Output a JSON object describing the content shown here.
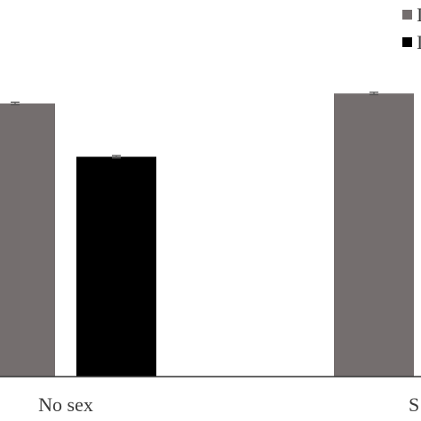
{
  "colors": {
    "background": "#ffffff",
    "series_1": "#746e6e",
    "series_2": "#000000",
    "axis": "#333333",
    "error_bar": "#555555"
  },
  "chart_data": {
    "type": "bar",
    "categories": [
      "No sex",
      "Sex"
    ],
    "category_labels_visible": [
      "No sex",
      "S"
    ],
    "series": [
      {
        "legend_text_visible": "I",
        "color": "#746e6e",
        "values": [
          0.82,
          0.85
        ],
        "errors": [
          0.01,
          0.01
        ]
      },
      {
        "legend_text_visible": "I",
        "color": "#000000",
        "values": [
          0.66,
          null
        ],
        "errors": [
          0.01,
          null
        ]
      }
    ],
    "ylim": [
      0,
      1.0
    ],
    "grid": false,
    "legend_position": "top-right",
    "title": "",
    "xlabel": "",
    "ylabel": ""
  }
}
